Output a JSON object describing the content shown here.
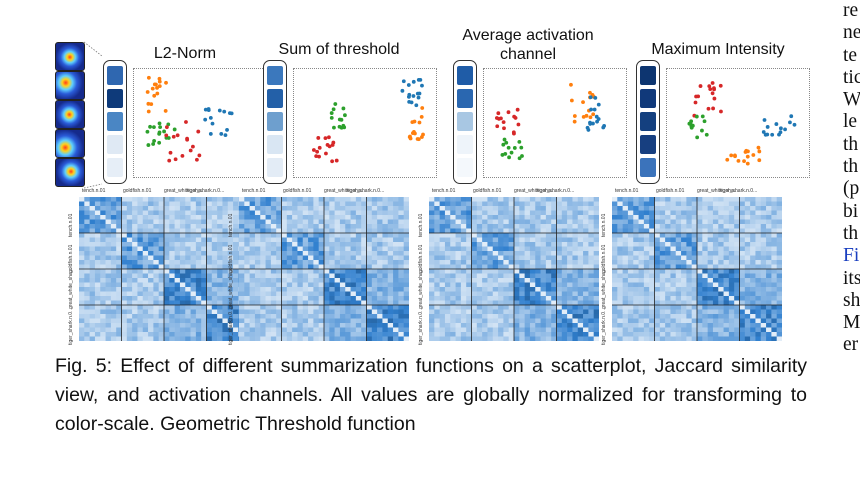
{
  "panels": [
    {
      "title": "L2-Norm",
      "swatches": [
        "#2f67b0",
        "#0e3a7a",
        "#4a86c4",
        "#dfe9f4",
        "#e6eef7"
      ]
    },
    {
      "title": "Sum of threshold",
      "swatches": [
        "#3b78bd",
        "#2360a8",
        "#6e9fce",
        "#d9e6f3",
        "#e3ecf6"
      ]
    },
    {
      "title": "Average activation channel",
      "swatches": [
        "#1f5ca7",
        "#2a67b0",
        "#a8c7e3",
        "#eef4fa",
        "#f4f8fc"
      ]
    },
    {
      "title": "Maximum Intensity",
      "swatches": [
        "#0d3570",
        "#10397a",
        "#14407f",
        "#173f80",
        "#3b73bb"
      ]
    }
  ],
  "matrix_labels": {
    "top": [
      "tench.n.01",
      "goldfish.n.01",
      "great_white_sha...",
      "tiger_shark.n.0..."
    ],
    "left": [
      "tench.n.01",
      "goldfish.n.01",
      "great_white_sha...",
      "tiger_shark.n.0..."
    ]
  },
  "caption": {
    "fig_label": "Fig. 5:",
    "text": "Effect of different summarization functions on a scatterplot, Jaccard similarity view, and activation channels. All values are globally normalized for transforming to color-scale. Geometric Threshold function"
  },
  "side_column": [
    "re",
    "ne",
    "te",
    "tic",
    "W",
    "le",
    "th",
    "th",
    "(p",
    "bi",
    "th",
    "Fi",
    "its",
    "sh",
    "M",
    "er"
  ],
  "colors": {
    "red": "#d62728",
    "green": "#2ca02c",
    "orange": "#ff7f0e",
    "blue": "#1f77b4",
    "link": "#1a3fc0"
  }
}
